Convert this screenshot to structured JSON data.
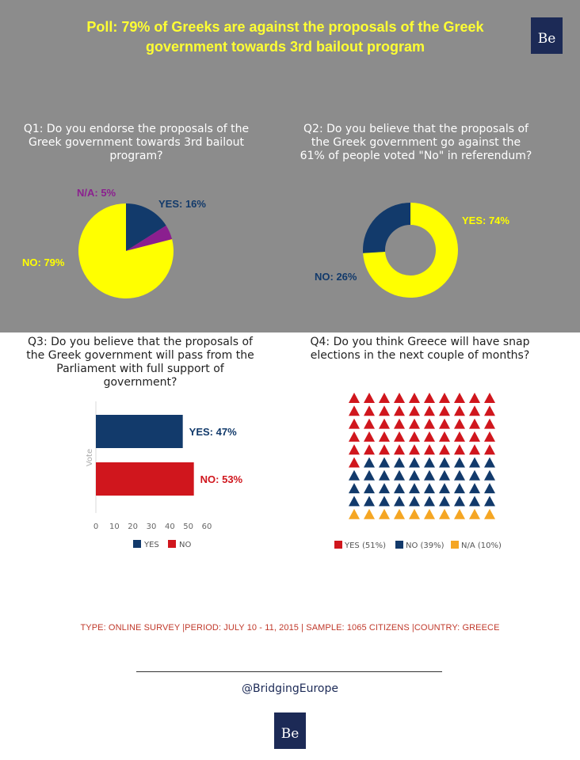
{
  "header": {
    "title_line1": "Poll: 79% of Greeks are against the proposals of the Greek",
    "title_line2": "government towards 3rd bailout program",
    "logo_text": "Be"
  },
  "colors": {
    "background_top": "#8c8c8c",
    "title_yellow": "#ffff33",
    "yes_navy": "#123a6b",
    "no_red": "#d0161d",
    "na_purple": "#8b1f8f",
    "na_orange": "#f5a623",
    "pie_yellow": "#ffff00"
  },
  "q1": {
    "line1": "Q1: Do you endorse the proposals of the",
    "line2": "Greek government towards 3rd bailout",
    "line3": "program?"
  },
  "q2": {
    "line1": "Q2: Do you believe that the proposals of",
    "line2": "the Greek government go against the",
    "line3": "61% of people voted \"No\" in referendum?"
  },
  "q3": {
    "line1": "Q3: Do you believe that the proposals of",
    "line2": "the Greek government will pass from the",
    "line3": "Parliament with full support of",
    "line4": "government?"
  },
  "q4": {
    "line1": "Q4: Do you think Greece will have snap",
    "line2": "elections in the next couple of months?"
  },
  "chart_data": [
    {
      "type": "pie",
      "labels": [
        "YES",
        "N/A",
        "NO"
      ],
      "values": [
        16,
        5,
        79
      ],
      "data_labels": [
        "YES: 16%",
        "N/A: 5%",
        "NO: 79%"
      ],
      "colors": [
        "#123a6b",
        "#8b1f8f",
        "#ffff00"
      ]
    },
    {
      "type": "pie",
      "donut": true,
      "labels": [
        "YES",
        "NO"
      ],
      "values": [
        74,
        26
      ],
      "data_labels": [
        "YES: 74%",
        "NO: 26%"
      ],
      "colors": [
        "#ffff00",
        "#123a6b"
      ]
    },
    {
      "type": "bar",
      "orientation": "horizontal",
      "categories": [
        "YES",
        "NO"
      ],
      "values": [
        47,
        53
      ],
      "data_labels": [
        "YES: 47%",
        "NO: 53%"
      ],
      "colors": [
        "#123a6b",
        "#d0161d"
      ],
      "ylabel": "Vote",
      "xlim": [
        0,
        60
      ],
      "xticks": [
        "0",
        "10",
        "20",
        "30",
        "40",
        "50",
        "60"
      ],
      "legend": [
        "YES",
        "NO"
      ],
      "legend_position": "bottom"
    },
    {
      "type": "waffle",
      "categories": [
        "YES",
        "NO",
        "N/A"
      ],
      "values": [
        51,
        39,
        10
      ],
      "legend": [
        "YES (51%)",
        "NO (39%)",
        "N/A (10%)"
      ],
      "colors": [
        "#d0161d",
        "#123a6b",
        "#f5a623"
      ],
      "total_icons": 100,
      "legend_position": "bottom"
    }
  ],
  "footer": {
    "meta": "TYPE: ONLINE SURVEY  |PERIOD: JULY 10 - 11, 2015 | SAMPLE: 1065 CITIZENS |COUNTRY: GREECE",
    "handle": "@BridgingEurope",
    "logo_text": "Be"
  }
}
